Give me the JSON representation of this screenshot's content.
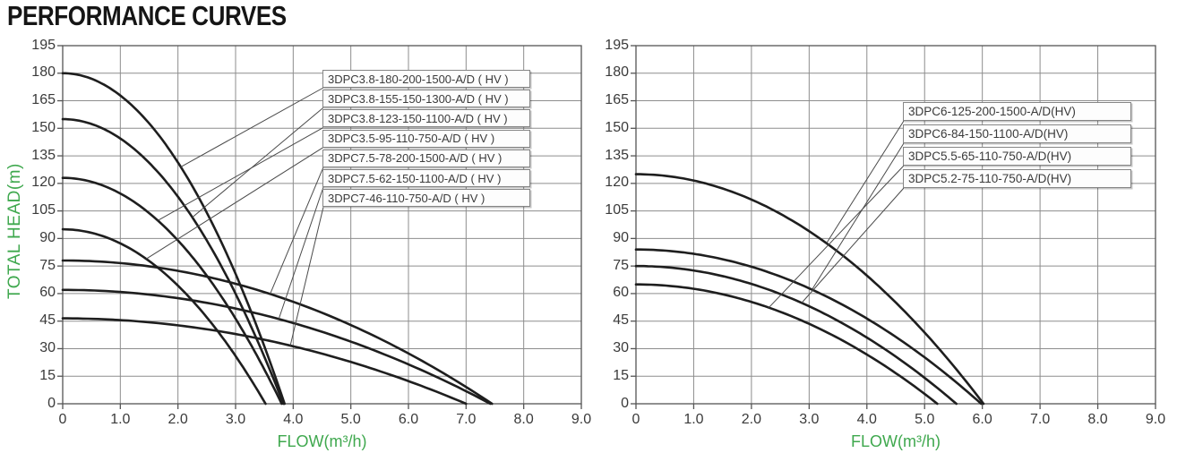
{
  "title": "PERFORMANCE CURVES",
  "colors": {
    "accent_green": "#3fa84e",
    "curve": "#1e1e1e",
    "grid": "#8d8d8d",
    "plot_border": "#555555",
    "tick_text": "#3a3a3a",
    "leader_line": "#4a4a4a",
    "label_box_border": "#858585",
    "label_box_bg": "#fdfdfd",
    "title_text": "#151515"
  },
  "chart_data": [
    {
      "type": "line",
      "name": "left-performance-chart",
      "xlabel": "FLOW(m³/h)",
      "ylabel": "TOTAL HEAD(m)",
      "xlim": [
        0,
        9
      ],
      "ylim": [
        0,
        195
      ],
      "grid": true,
      "x_tick_labels": [
        "0",
        "1.0",
        "2.0",
        "3.0",
        "4.0",
        "5.0",
        "6.0",
        "7.0",
        "8.0",
        "9.0"
      ],
      "y_tick_labels": [
        "195",
        "180",
        "165",
        "150",
        "135",
        "120",
        "105",
        "90",
        "75",
        "60",
        "45",
        "30",
        "15",
        "0"
      ],
      "curve_model": "head = shutoff_head_m × (1 − (flow / max_flow_m3h)²)",
      "series": [
        {
          "label": "3DPC3.8-180-200-1500-A/D ( HV )",
          "shutoff_head_m": 180,
          "max_flow_m3h": 3.85,
          "attach": [
            2.05,
            129.0
          ]
        },
        {
          "label": "3DPC3.8-155-150-1300-A/D ( HV )",
          "shutoff_head_m": 155,
          "max_flow_m3h": 3.83,
          "attach": [
            2.25,
            101.5
          ]
        },
        {
          "label": "3DPC3.8-123-150-1100-A/D ( HV )",
          "shutoff_head_m": 123,
          "max_flow_m3h": 3.8,
          "attach": [
            1.65,
            99.8
          ]
        },
        {
          "label": "3DPC3.5-95-110-750-A/D ( HV )",
          "shutoff_head_m": 95,
          "max_flow_m3h": 3.52,
          "attach": [
            1.45,
            78.9
          ]
        },
        {
          "label": "3DPC7.5-78-200-1500-A/D ( HV )",
          "shutoff_head_m": 78,
          "max_flow_m3h": 7.45,
          "attach": [
            3.6,
            59.8
          ]
        },
        {
          "label": "3DPC7.5-62-150-1100-A/D ( HV )",
          "shutoff_head_m": 62,
          "max_flow_m3h": 7.42,
          "attach": [
            3.75,
            46.2
          ]
        },
        {
          "label": "3DPC7-46-110-750-A/D ( HV )",
          "shutoff_head_m": 46.5,
          "max_flow_m3h": 7.0,
          "attach": [
            3.95,
            31.7
          ]
        }
      ]
    },
    {
      "type": "line",
      "name": "right-performance-chart",
      "xlabel": "FLOW(m³/h)",
      "ylabel": "",
      "xlim": [
        0,
        9
      ],
      "ylim": [
        0,
        195
      ],
      "grid": true,
      "x_tick_labels": [
        "0",
        "1.0",
        "2.0",
        "3.0",
        "4.0",
        "5.0",
        "6.0",
        "7.0",
        "8.0",
        "9.0"
      ],
      "y_tick_labels": [
        "195",
        "180",
        "165",
        "150",
        "135",
        "120",
        "105",
        "90",
        "75",
        "60",
        "45",
        "30",
        "15",
        "0"
      ],
      "curve_model": "head = shutoff_head_m × (1 − (flow / max_flow_m3h)²)",
      "series": [
        {
          "label": "3DPC6-125-200-1500-A/D(HV)",
          "shutoff_head_m": 125,
          "max_flow_m3h": 6.02,
          "attach": [
            3.3,
            87.4
          ]
        },
        {
          "label": "3DPC6-84-150-1100-A/D(HV)",
          "shutoff_head_m": 84,
          "max_flow_m3h": 5.98,
          "attach": [
            3.05,
            62.2
          ]
        },
        {
          "label": "3DPC5.5-65-110-750-A/D(HV)",
          "shutoff_head_m": 65,
          "max_flow_m3h": 5.22,
          "attach": [
            2.3,
            52.3
          ]
        },
        {
          "label": "3DPC5.2-75-110-750-A/D(HV)",
          "shutoff_head_m": 75,
          "max_flow_m3h": 5.55,
          "attach": [
            2.87,
            54.9
          ]
        }
      ]
    }
  ]
}
